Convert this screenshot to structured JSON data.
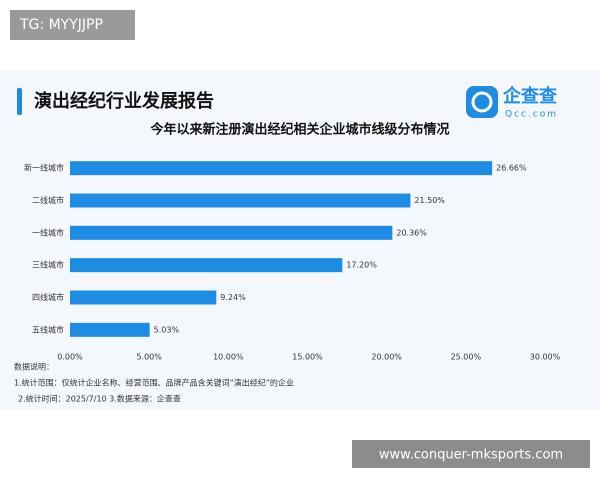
{
  "watermark": "TG: MYYJJPP",
  "header": {
    "title": "演出经纪行业发展报告",
    "logo": "企查查",
    "logo_sub": "Qcc.com"
  },
  "chart_data": {
    "type": "hbar",
    "title": "今年以来新注册演出经纪相关企业城市线级分布情况",
    "categories": [
      "新一线城市",
      "二线城市",
      "一线城市",
      "三线城市",
      "四线城市",
      "五线城市"
    ],
    "values": [
      26.66,
      21.5,
      20.36,
      17.2,
      9.24,
      5.03
    ],
    "value_labels": [
      "26.66%",
      "21.50%",
      "20.36%",
      "17.20%",
      "9.24%",
      "5.03%"
    ],
    "color": "#1f8ce3",
    "xlim": [
      0,
      30
    ],
    "xticks": [
      {
        "value": 0,
        "label": "0.00%"
      },
      {
        "value": 5,
        "label": "5.00%"
      },
      {
        "value": 10,
        "label": "10.00%"
      },
      {
        "value": 15,
        "label": "15.00%"
      },
      {
        "value": 20,
        "label": "20.00%"
      },
      {
        "value": 25,
        "label": "25.00%"
      },
      {
        "value": 30,
        "label": "30.00%"
      }
    ]
  },
  "notes": [
    "数据说明：",
    "1.统计范围：仅统计企业名称、经营范围、品牌产品含关键词“演出经纪”的企业",
    "2.统计时间：2025/7/10 3.数据来源：企查查"
  ],
  "footer_watermark": "www.conquer-mksports.com"
}
